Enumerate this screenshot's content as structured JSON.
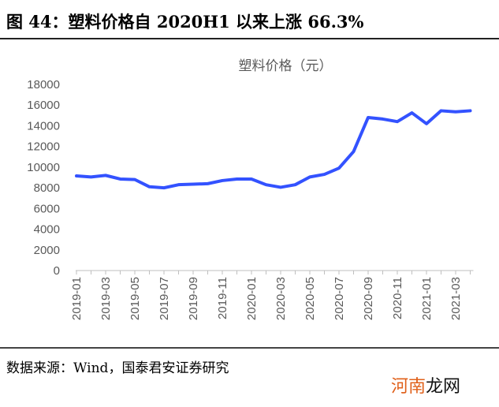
{
  "figure_title": "图 44：塑料价格自 2020H1 以来上涨 66.3%",
  "source": "数据来源：Wind，国泰君安证券研究",
  "watermark": "河南龙网",
  "chart_data": {
    "type": "line",
    "title": "塑料价格（元）",
    "xlabel": "",
    "ylabel": "",
    "ylim": [
      0,
      18000
    ],
    "yticks": [
      0,
      2000,
      4000,
      6000,
      8000,
      10000,
      12000,
      14000,
      16000,
      18000
    ],
    "grid": false,
    "legend": "none",
    "x": [
      "2019-01",
      "2019-02",
      "2019-03",
      "2019-04",
      "2019-05",
      "2019-06",
      "2019-07",
      "2019-08",
      "2019-09",
      "2019-10",
      "2019-11",
      "2019-12",
      "2020-01",
      "2020-02",
      "2020-03",
      "2020-04",
      "2020-05",
      "2020-06",
      "2020-07",
      "2020-08",
      "2020-09",
      "2020-10",
      "2020-11",
      "2020-12",
      "2021-01",
      "2021-02",
      "2021-03",
      "2021-04"
    ],
    "xtick_labels": [
      "2019-01",
      "2019-03",
      "2019-05",
      "2019-07",
      "2019-09",
      "2019-11",
      "2020-01",
      "2020-03",
      "2020-05",
      "2020-07",
      "2020-09",
      "2020-11",
      "2021-01",
      "2021-03"
    ],
    "series": [
      {
        "values": [
          9150,
          9050,
          9200,
          8850,
          8800,
          8100,
          8000,
          8300,
          8350,
          8400,
          8700,
          8850,
          8850,
          8300,
          8050,
          8300,
          9050,
          9300,
          9900,
          11500,
          14800,
          14650,
          14400,
          15250,
          14200,
          15450,
          15350,
          15450
        ],
        "color": "#3352ff"
      }
    ]
  }
}
